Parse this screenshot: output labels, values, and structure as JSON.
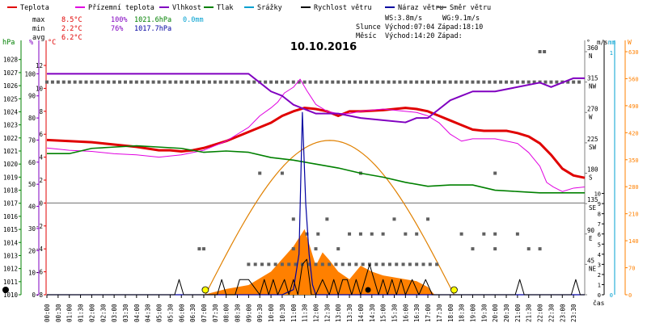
{
  "chart_data": {
    "type": "line",
    "title": "10.10.2016",
    "xlabel": "čas",
    "legend": {
      "placement": "top",
      "items": [
        {
          "label": "Teplota",
          "color": "#e00000"
        },
        {
          "label": "Přízemní teplota",
          "color": "#e000e0"
        },
        {
          "label": "Vlhkost",
          "color": "#8000c0"
        },
        {
          "label": "Tlak",
          "color": "#008000"
        },
        {
          "label": "Srážky",
          "color": "#00a0d0"
        },
        {
          "label": "Rychlost větru",
          "color": "#000000"
        },
        {
          "label": "Náraz větru",
          "color": "#0000a0"
        },
        {
          "label": "Směr větru",
          "color": "#606060"
        }
      ]
    },
    "stats": {
      "max": {
        "label": "max",
        "temp": "8.5°C",
        "hum": "100%",
        "press": "1021.6hPa",
        "rain": "0.0mm"
      },
      "min": {
        "label": "min",
        "temp": "2.2°C",
        "hum": "76%",
        "press": "1017.7hPa"
      },
      "avg": {
        "label": "avg",
        "temp": "6.2°C"
      }
    },
    "info": {
      "ws": "WS:3.8m/s",
      "wg": "WG:9.1m/s",
      "sun_label": "Slunce",
      "sunrise": "Východ:07:04",
      "sunset": "Západ:18:10",
      "moon_label": "Měsíc",
      "moonrise": "Východ:14:20",
      "moonset": "Západ:"
    },
    "axes": {
      "hpa": {
        "unit": "hPa",
        "ticks": [
          1010,
          1011,
          1012,
          1013,
          1014,
          1015,
          1016,
          1017,
          1018,
          1019,
          1020,
          1021,
          1022,
          1023,
          1024,
          1025,
          1026,
          1027,
          1028
        ],
        "range": [
          1010,
          1028.6
        ]
      },
      "pct": {
        "unit": "%",
        "ticks": [
          0,
          10,
          20,
          30,
          40,
          50,
          60,
          70,
          80,
          90,
          100
        ],
        "range": [
          0,
          110
        ]
      },
      "temp": {
        "unit": "°C",
        "ticks": [
          -8,
          -6,
          -4,
          -2,
          0,
          2,
          4,
          6,
          8,
          10,
          12
        ],
        "range": [
          -8,
          13.2
        ]
      },
      "dir": {
        "unit": "°",
        "ticks": [
          {
            "v": 0,
            "l": ""
          },
          {
            "v": 45,
            "l": "45 NE"
          },
          {
            "v": 90,
            "l": "90 E"
          },
          {
            "v": 135,
            "l": "135 SE"
          },
          {
            "v": 180,
            "l": "180 S"
          },
          {
            "v": 225,
            "l": "225 SW"
          },
          {
            "v": 270,
            "l": "270 W"
          },
          {
            "v": 315,
            "l": "315 NW"
          },
          {
            "v": 360,
            "l": "360 N"
          }
        ],
        "range": [
          0,
          360
        ]
      },
      "ms": {
        "unit": "m/s",
        "ticks": [
          0,
          1,
          2,
          3,
          4,
          5,
          6,
          7,
          8,
          9,
          10
        ],
        "range": [
          0,
          24
        ]
      },
      "mm": {
        "unit": "mm",
        "ticks": [
          {
            "v": 0,
            "l": "0"
          },
          {
            "v": 1,
            "l": "1"
          }
        ],
        "range": [
          0,
          1
        ]
      },
      "w": {
        "unit": "W",
        "ticks": [
          0,
          70,
          140,
          210,
          280,
          350,
          420,
          490,
          560,
          630
        ],
        "range": [
          0,
          630
        ]
      }
    },
    "x_ticks": [
      "00:00",
      "00:30",
      "01:00",
      "01:30",
      "02:00",
      "02:30",
      "03:00",
      "03:30",
      "04:00",
      "04:30",
      "05:00",
      "05:30",
      "06:00",
      "06:30",
      "07:00",
      "07:30",
      "08:00",
      "08:30",
      "09:00",
      "09:30",
      "10:00",
      "10:30",
      "11:00",
      "11:30",
      "12:00",
      "12:30",
      "13:00",
      "13:30",
      "14:00",
      "14:30",
      "15:00",
      "15:30",
      "16:00",
      "16:30",
      "17:00",
      "17:30",
      "18:00",
      "18:30",
      "19:00",
      "19:30",
      "20:00",
      "20:30",
      "21:00",
      "21:30",
      "22:00",
      "22:30",
      "23:00",
      "23:30"
    ],
    "series": [
      {
        "name": "Teplota",
        "axis": "temp",
        "color": "#e00000",
        "width": 3,
        "x": [
          0,
          1,
          2,
          3,
          4,
          5,
          5.5,
          6,
          6.5,
          7,
          8,
          9,
          10,
          10.5,
          11,
          11.5,
          12,
          12.5,
          13,
          13.5,
          14,
          15,
          16,
          16.5,
          17,
          17.5,
          18,
          18.5,
          19,
          19.5,
          20,
          20.5,
          21,
          21.5,
          22,
          22.5,
          23,
          23.5,
          24
        ],
        "y": [
          5.5,
          5.4,
          5.3,
          5.1,
          4.9,
          4.6,
          4.6,
          4.5,
          4.6,
          4.8,
          5.4,
          6.2,
          7.0,
          7.6,
          8.0,
          8.3,
          8.2,
          8.0,
          7.6,
          8.0,
          8.0,
          8.1,
          8.3,
          8.2,
          8.0,
          7.6,
          7.2,
          6.8,
          6.4,
          6.3,
          6.3,
          6.3,
          6.1,
          5.8,
          5.2,
          4.2,
          3.0,
          2.4,
          2.2
        ]
      },
      {
        "name": "Přízemní teplota",
        "axis": "temp",
        "color": "#e000e0",
        "width": 1,
        "x": [
          0,
          1,
          2,
          3,
          4,
          5,
          6,
          7,
          8,
          9,
          9.5,
          10,
          10.3,
          10.6,
          11,
          11.3,
          11.6,
          12,
          12.5,
          13,
          13.5,
          14,
          15,
          16,
          16.5,
          17,
          17.5,
          18,
          18.5,
          19,
          20,
          21,
          21.5,
          22,
          22.3,
          22.6,
          23,
          23.5,
          24
        ],
        "y": [
          4.8,
          4.6,
          4.5,
          4.3,
          4.2,
          4.0,
          4.2,
          4.6,
          5.4,
          6.6,
          7.6,
          8.3,
          8.8,
          9.6,
          10.1,
          10.8,
          9.8,
          8.6,
          8.0,
          7.8,
          7.8,
          8.0,
          8.2,
          8.0,
          7.9,
          7.6,
          7.0,
          6.0,
          5.4,
          5.6,
          5.6,
          5.2,
          4.4,
          3.2,
          1.8,
          1.4,
          1.0,
          1.3,
          1.4
        ]
      },
      {
        "name": "Vlhkost",
        "axis": "pct",
        "color": "#8000c0",
        "width": 2,
        "x": [
          0,
          5,
          9,
          9.5,
          10,
          10.5,
          11,
          11.5,
          12,
          13,
          14,
          15,
          16,
          16.5,
          17,
          17.5,
          18,
          18.5,
          19,
          20,
          21,
          22,
          22.5,
          23,
          23.5,
          24
        ],
        "y": [
          100,
          100,
          100,
          96,
          92,
          90,
          86,
          84,
          82,
          82,
          80,
          79,
          78,
          80,
          80,
          84,
          88,
          90,
          92,
          92,
          94,
          96,
          94,
          96,
          98,
          98
        ]
      },
      {
        "name": "Tlak",
        "axis": "hpa",
        "color": "#008000",
        "width": 1.6,
        "x": [
          0,
          1,
          2,
          3,
          4,
          5,
          6,
          7,
          8,
          9,
          10,
          11,
          12,
          13,
          14,
          15,
          16,
          17,
          18,
          19,
          20,
          21,
          22,
          23,
          24
        ],
        "y": [
          1020.8,
          1020.8,
          1021.2,
          1021.3,
          1021.4,
          1021.3,
          1021.2,
          1020.9,
          1021.0,
          1020.9,
          1020.5,
          1020.3,
          1020.0,
          1019.7,
          1019.3,
          1019.0,
          1018.6,
          1018.3,
          1018.4,
          1018.4,
          1018.0,
          1017.9,
          1017.8,
          1017.8,
          1017.8
        ]
      },
      {
        "name": "Náraz větru",
        "axis": "ms",
        "color": "#0000a0",
        "width": 1.2,
        "x": [
          0,
          10.5,
          11,
          11.25,
          11.4,
          11.55,
          11.7,
          11.85,
          12,
          12.5,
          24
        ],
        "y": [
          0,
          0,
          0.5,
          4.0,
          18.0,
          9.0,
          4.0,
          1.0,
          0,
          0,
          0
        ]
      },
      {
        "name": "Rychlost větru",
        "axis": "ms",
        "color": "#000000",
        "width": 1,
        "x": [
          0,
          5.7,
          5.9,
          6.1,
          7.6,
          7.8,
          8.0,
          8.2,
          8.4,
          8.6,
          8.8,
          9.0,
          9.5,
          9.7,
          9.9,
          10.1,
          10.3,
          10.6,
          10.8,
          11.0,
          11.2,
          11.4,
          11.6,
          11.8,
          12.0,
          12.3,
          12.6,
          12.8,
          13.0,
          13.2,
          13.4,
          13.6,
          13.8,
          14.0,
          14.2,
          14.4,
          14.6,
          14.8,
          15.0,
          15.2,
          15.4,
          15.6,
          15.8,
          16.0,
          16.3,
          16.6,
          16.9,
          17.2,
          20.9,
          21.1,
          21.3,
          23.4,
          23.6,
          23.8,
          24
        ],
        "y": [
          0,
          0,
          1.5,
          0,
          0,
          1.5,
          0,
          0,
          0,
          1.5,
          1.5,
          1.5,
          0,
          1.5,
          0,
          1.5,
          0,
          1.5,
          0,
          1.5,
          0,
          3.0,
          3.5,
          0,
          0,
          1.5,
          0,
          1.5,
          0,
          1.5,
          1.5,
          0,
          1.5,
          0,
          1.5,
          3.0,
          1.5,
          0,
          1.5,
          0,
          1.5,
          0,
          1.5,
          0,
          1.5,
          0,
          1.5,
          0,
          0,
          1.5,
          0,
          0,
          1.5,
          0,
          0
        ]
      }
    ],
    "solar": {
      "name": "Solar",
      "axis": "w",
      "color": "#ff8000",
      "x": [
        7.0,
        8,
        9,
        10,
        11,
        11.5,
        12,
        12.3,
        12.6,
        13,
        13.5,
        14,
        14.5,
        15,
        15.5,
        16,
        16.5,
        17,
        17.3,
        18.2
      ],
      "y": [
        0,
        15,
        25,
        60,
        125,
        170,
        75,
        110,
        90,
        60,
        40,
        75,
        60,
        50,
        45,
        40,
        35,
        20,
        0,
        0
      ]
    },
    "sun_curve": {
      "axis": "w",
      "rise": 7.07,
      "set": 18.17,
      "peak": 400,
      "color": "#e08000"
    },
    "wind_dir": {
      "axis": "dir",
      "color": "#606060",
      "x": [
        0,
        0.25,
        0.5,
        0.75,
        1,
        1.25,
        1.5,
        1.75,
        2,
        2.25,
        2.5,
        2.75,
        3,
        3.25,
        3.5,
        3.75,
        4,
        4.25,
        4.5,
        4.75,
        5,
        5.25,
        5.5,
        5.75,
        6,
        6.25,
        6.5,
        6.75,
        7,
        7.25,
        7.5,
        7.75,
        8,
        8.25,
        8.5,
        8.75,
        9,
        9.25,
        9.5,
        9.75,
        10,
        10.25,
        10.5,
        10.75,
        11,
        11.25,
        11.5,
        11.75,
        12,
        12.25,
        12.5,
        12.75,
        13,
        13.25,
        13.5,
        13.75,
        14,
        14.25,
        14.5,
        14.75,
        15,
        15.25,
        15.5,
        15.75,
        16,
        16.25,
        16.5,
        16.75,
        17,
        17.25,
        17.5,
        17.75,
        18,
        18.25,
        18.5,
        18.75,
        19,
        19.25,
        19.5,
        19.75,
        20,
        20.25,
        20.5,
        20.75,
        21,
        21.25,
        21.5,
        21.75,
        22,
        22.25,
        22.5,
        22.75,
        23,
        23.25,
        23.5,
        23.75,
        9.0,
        9.3,
        9.6,
        9.9,
        10.2,
        10.5,
        10.8,
        11.1,
        11.4,
        11.7,
        12.0,
        12.3,
        12.6,
        12.9,
        13.2,
        13.5,
        13.8,
        14.1,
        14.4,
        14.7,
        15.0,
        15.3,
        15.6,
        15.9,
        16.2,
        16.5,
        16.8,
        17.1,
        17.4,
        11.6,
        12.1,
        13.5,
        14.0,
        14.5,
        15.0,
        16.0,
        16.5,
        18.5,
        19.5,
        20.0,
        21.0,
        11.0,
        12.5,
        15.5,
        17.0,
        6.8,
        7.0,
        11.0,
        12.0,
        13.0,
        19.0,
        20.0,
        21.5,
        22.0,
        9.5,
        10.5,
        14.0,
        20.0,
        22.0,
        22.2
      ],
      "y": [
        315,
        315,
        315,
        315,
        315,
        315,
        315,
        315,
        315,
        315,
        315,
        315,
        315,
        315,
        315,
        315,
        315,
        315,
        315,
        315,
        315,
        315,
        315,
        315,
        315,
        315,
        315,
        315,
        315,
        315,
        315,
        315,
        315,
        315,
        315,
        315,
        315,
        315,
        315,
        315,
        315,
        315,
        315,
        315,
        315,
        315,
        315,
        315,
        315,
        315,
        315,
        315,
        315,
        315,
        315,
        315,
        315,
        315,
        315,
        315,
        315,
        315,
        315,
        315,
        315,
        315,
        315,
        315,
        315,
        315,
        315,
        315,
        315,
        315,
        315,
        315,
        315,
        315,
        315,
        315,
        315,
        315,
        315,
        315,
        315,
        315,
        315,
        315,
        315,
        315,
        315,
        315,
        315,
        315,
        315,
        315,
        45,
        45,
        45,
        45,
        45,
        45,
        45,
        45,
        45,
        45,
        45,
        45,
        45,
        45,
        45,
        45,
        45,
        45,
        45,
        45,
        45,
        45,
        45,
        45,
        45,
        45,
        45,
        45,
        45,
        90,
        90,
        90,
        90,
        90,
        90,
        90,
        90,
        90,
        90,
        90,
        90,
        112,
        112,
        112,
        112,
        68,
        68,
        68,
        68,
        68,
        68,
        68,
        68,
        68,
        180,
        180,
        180,
        180,
        360,
        360
      ]
    },
    "markers": {
      "sunrise": 7.07,
      "sunset": 18.17,
      "moonrise": 14.33,
      "left_dot": "#000000",
      "sun_color": "#ffff00"
    }
  }
}
